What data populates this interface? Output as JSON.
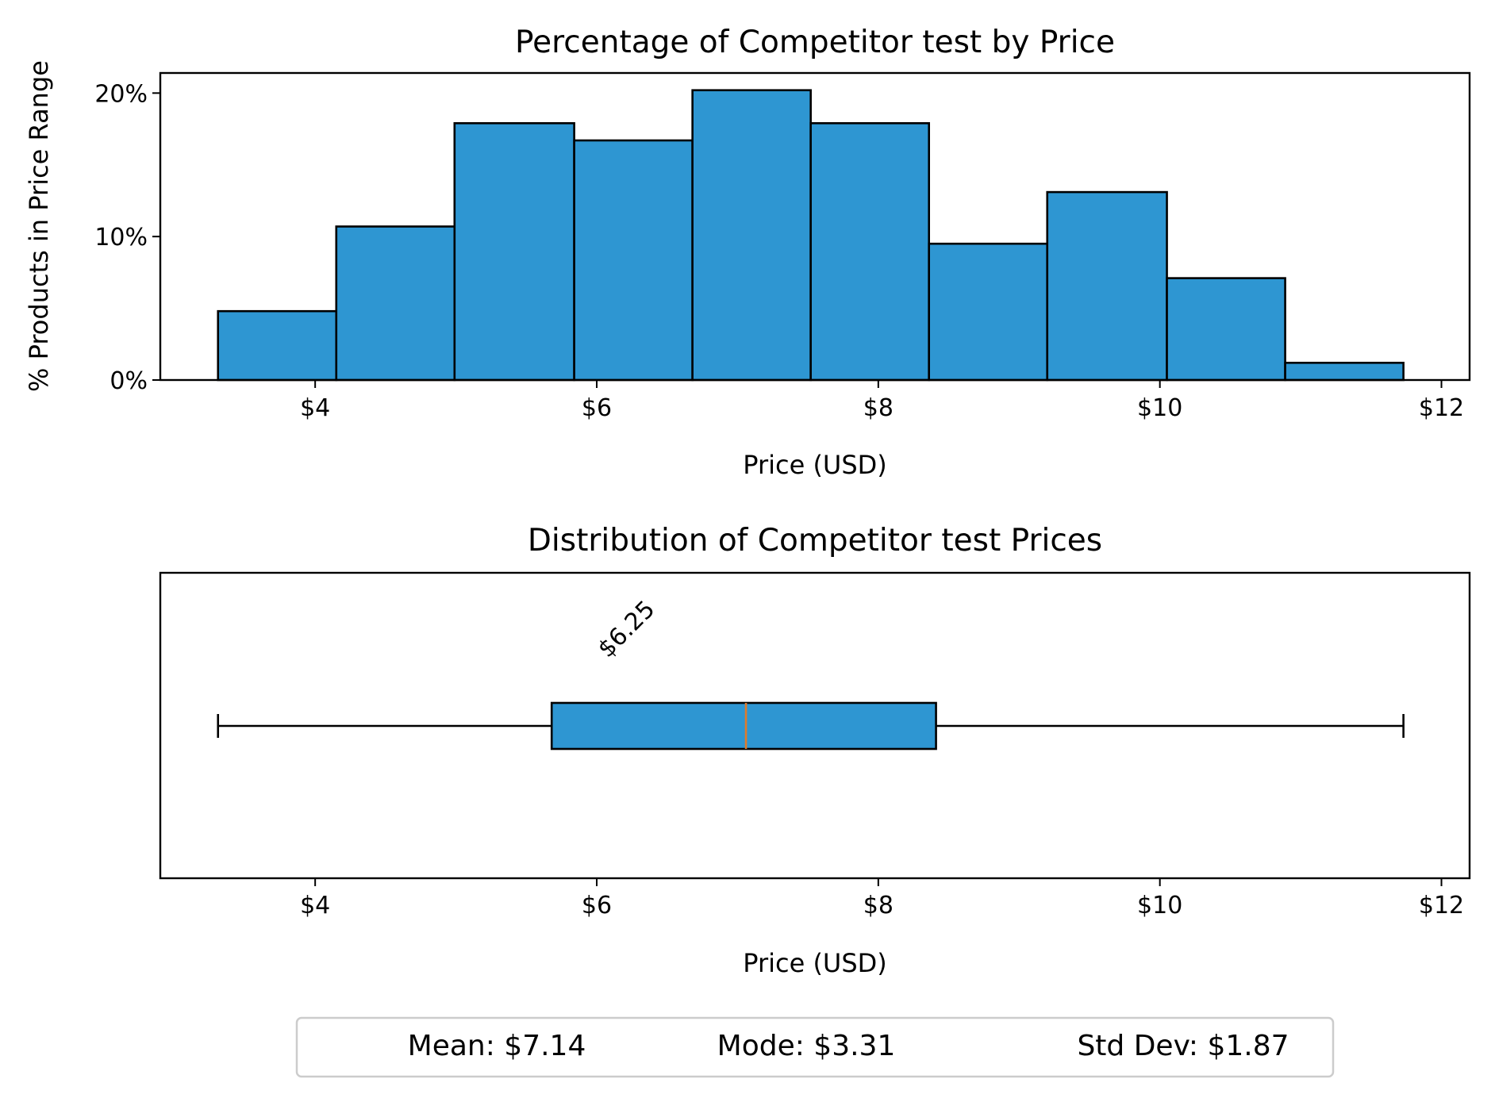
{
  "colors": {
    "bar_fill": "#2E96D2",
    "edge": "#000000",
    "median": "#E07B2A"
  },
  "chart_data": [
    {
      "type": "bar",
      "title": "Percentage of Competitor test by Price",
      "xlabel": "Price (USD)",
      "ylabel": "% Products in Price Range",
      "xlim": [
        2.9,
        12.2
      ],
      "ylim": [
        0,
        21.4
      ],
      "xticks": [
        4,
        6,
        8,
        10,
        12
      ],
      "xtick_labels": [
        "$4",
        "$6",
        "$8",
        "$10",
        "$12"
      ],
      "yticks": [
        0,
        10,
        20
      ],
      "ytick_labels": [
        "0%",
        "10%",
        "20%"
      ],
      "bins": [
        {
          "from": 3.31,
          "to": 4.15,
          "value": 4.8
        },
        {
          "from": 4.15,
          "to": 4.99,
          "value": 10.7
        },
        {
          "from": 4.99,
          "to": 5.84,
          "value": 17.9
        },
        {
          "from": 5.84,
          "to": 6.68,
          "value": 16.7
        },
        {
          "from": 6.68,
          "to": 7.52,
          "value": 20.2
        },
        {
          "from": 7.52,
          "to": 8.36,
          "value": 17.9
        },
        {
          "from": 8.36,
          "to": 9.2,
          "value": 9.5
        },
        {
          "from": 9.2,
          "to": 10.05,
          "value": 13.1
        },
        {
          "from": 10.05,
          "to": 10.89,
          "value": 7.1
        },
        {
          "from": 10.89,
          "to": 11.73,
          "value": 1.2
        }
      ],
      "grid": false,
      "legend": "none"
    },
    {
      "type": "box",
      "title": "Distribution of Competitor test Prices",
      "xlabel": "Price (USD)",
      "xlim": [
        2.9,
        12.2
      ],
      "xticks": [
        4,
        6,
        8,
        10,
        12
      ],
      "xtick_labels": [
        "$4",
        "$6",
        "$8",
        "$10",
        "$12"
      ],
      "whisker_low": 3.31,
      "q1": 5.68,
      "median": 7.06,
      "q3": 8.41,
      "whisker_high": 11.73,
      "annotation": {
        "text": "$6.25",
        "x": 6.25
      }
    }
  ],
  "stats": {
    "mean": "Mean: $7.14",
    "mode": "Mode: $3.31",
    "std": "Std Dev: $1.87"
  }
}
